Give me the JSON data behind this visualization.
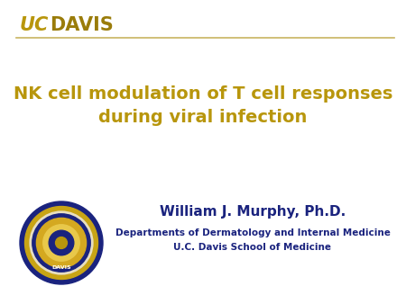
{
  "bg_color": "#ffffff",
  "header_line_color": "#c8b460",
  "uc_color": "#b8960c",
  "davis_color": "#9a7c0a",
  "title_line1": "NK cell modulation of T cell responses",
  "title_line2": "during viral infection",
  "title_color": "#b8960c",
  "title_fontsize": 14,
  "name_text": "William J. Murphy, Ph.D.",
  "name_color": "#1a237e",
  "name_fontsize": 11,
  "dept_text": "Departments of Dermatology and Internal Medicine",
  "dept_color": "#1a237e",
  "dept_fontsize": 7.5,
  "school_text": "U.C. Davis School of Medicine",
  "school_color": "#1a237e",
  "school_fontsize": 7.5,
  "uc_text": "UC",
  "davis_text": "DAVIS",
  "seal_outer_color": "#1a237e",
  "seal_gold_color": "#c8a415",
  "seal_cream_color": "#e8dfc0",
  "seal_inner_blue": "#1a237e",
  "seal_center_gold": "#d4a820",
  "seal_center_blue": "#1a237e",
  "seal_center_light": "#b8960c",
  "seal_text_color": "#ffffff"
}
